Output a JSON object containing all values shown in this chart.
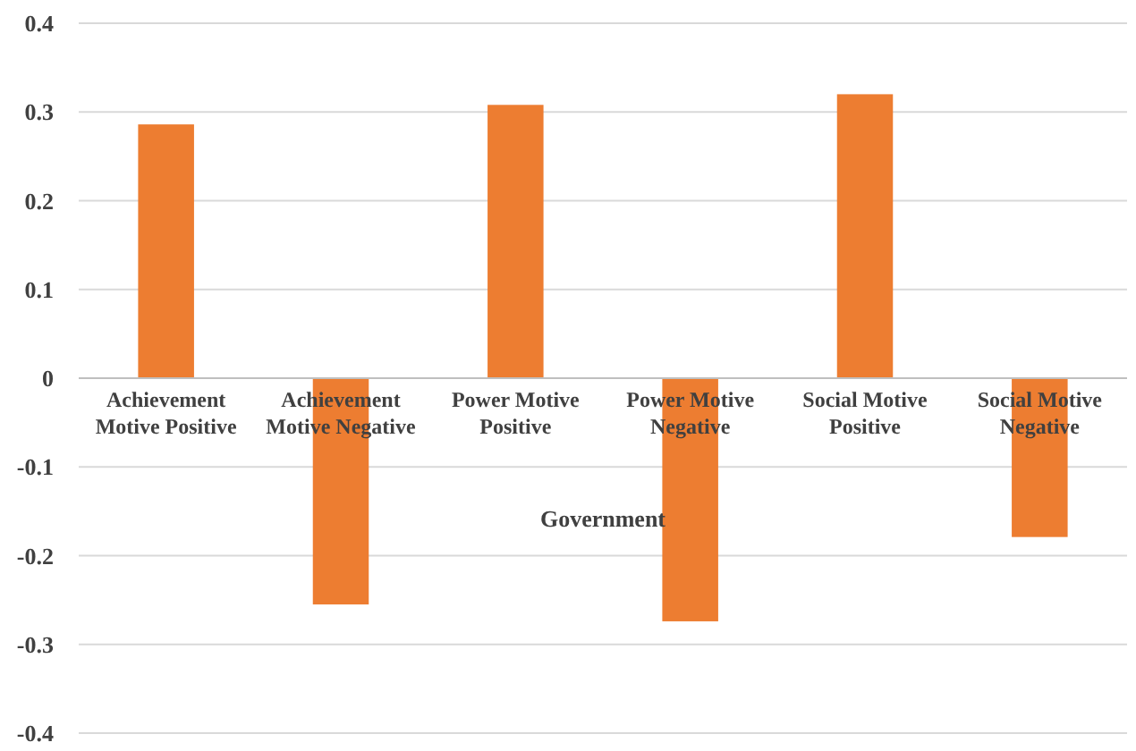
{
  "chart_data": {
    "type": "bar",
    "xlabel": "Government",
    "categories": [
      "Achievement Motive Positive",
      "Achievement Motive Negative",
      "Power Motive Positive",
      "Power Motive Negative",
      "Social Motive Positive",
      "Social Motive Negative"
    ],
    "values": [
      0.286,
      -0.255,
      0.308,
      -0.274,
      0.32,
      -0.179
    ],
    "color": "#ed7d31",
    "ylim": [
      -0.4,
      0.4
    ],
    "yticks": [
      -0.4,
      -0.3,
      -0.2,
      -0.1,
      0,
      0.1,
      0.2,
      0.3,
      0.4
    ],
    "grid": "y"
  }
}
